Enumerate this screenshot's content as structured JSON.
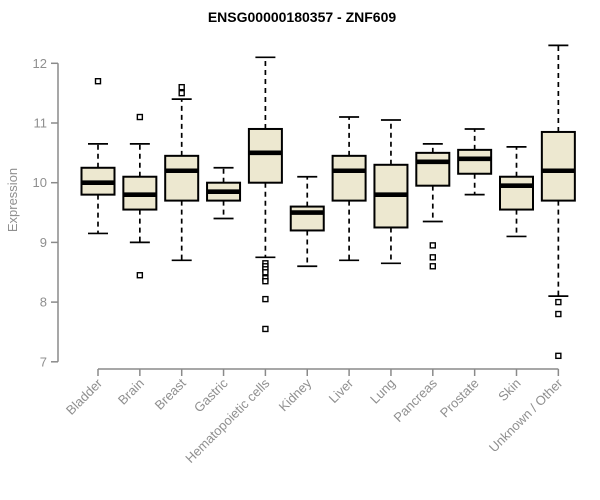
{
  "chart_data": {
    "type": "boxplot",
    "title": "ENSG00000180357 - ZNF609",
    "xlabel": "",
    "ylabel": "Expression",
    "ylim": [
      7,
      12
    ],
    "yticks": [
      7,
      8,
      9,
      10,
      11,
      12
    ],
    "grid": false,
    "legend": "none",
    "categories": [
      "Bladder",
      "Brain",
      "Breast",
      "Gastric",
      "Hematopoietic cells",
      "Kidney",
      "Liver",
      "Lung",
      "Pancreas",
      "Prostate",
      "Skin",
      "Unknown / Other"
    ],
    "series": [
      {
        "category": "Bladder",
        "whisker_low": 9.15,
        "q1": 9.8,
        "median": 10.0,
        "q3": 10.25,
        "whisker_high": 10.65,
        "outliers": [
          11.7
        ]
      },
      {
        "category": "Brain",
        "whisker_low": 9.0,
        "q1": 9.55,
        "median": 9.8,
        "q3": 10.1,
        "whisker_high": 10.65,
        "outliers": [
          11.1,
          8.45
        ]
      },
      {
        "category": "Breast",
        "whisker_low": 8.7,
        "q1": 9.7,
        "median": 10.2,
        "q3": 10.45,
        "whisker_high": 11.4,
        "outliers": [
          11.6,
          11.5
        ]
      },
      {
        "category": "Gastric",
        "whisker_low": 9.4,
        "q1": 9.7,
        "median": 9.85,
        "q3": 10.0,
        "whisker_high": 10.25,
        "outliers": []
      },
      {
        "category": "Hematopoietic cells",
        "whisker_low": 8.75,
        "q1": 10.0,
        "median": 10.5,
        "q3": 10.9,
        "whisker_high": 12.1,
        "outliers": [
          8.65,
          8.6,
          8.55,
          8.5,
          8.4,
          8.35,
          8.05,
          7.55
        ]
      },
      {
        "category": "Kidney",
        "whisker_low": 8.6,
        "q1": 9.2,
        "median": 9.5,
        "q3": 9.6,
        "whisker_high": 10.1,
        "outliers": []
      },
      {
        "category": "Liver",
        "whisker_low": 8.7,
        "q1": 9.7,
        "median": 10.2,
        "q3": 10.45,
        "whisker_high": 11.1,
        "outliers": []
      },
      {
        "category": "Lung",
        "whisker_low": 8.65,
        "q1": 9.25,
        "median": 9.8,
        "q3": 10.3,
        "whisker_high": 11.05,
        "outliers": []
      },
      {
        "category": "Pancreas",
        "whisker_low": 9.35,
        "q1": 9.95,
        "median": 10.35,
        "q3": 10.5,
        "whisker_high": 10.65,
        "outliers": [
          8.95,
          8.75,
          8.6
        ]
      },
      {
        "category": "Prostate",
        "whisker_low": 9.8,
        "q1": 10.15,
        "median": 10.4,
        "q3": 10.55,
        "whisker_high": 10.9,
        "outliers": []
      },
      {
        "category": "Skin",
        "whisker_low": 9.1,
        "q1": 9.55,
        "median": 9.95,
        "q3": 10.1,
        "whisker_high": 10.6,
        "outliers": []
      },
      {
        "category": "Unknown / Other",
        "whisker_low": 8.1,
        "q1": 9.7,
        "median": 10.2,
        "q3": 10.85,
        "whisker_high": 12.3,
        "outliers": [
          8.0,
          7.8,
          7.1
        ]
      }
    ],
    "colors": {
      "box_fill": "#EDE8D0",
      "box_border": "#000000",
      "median": "#000000",
      "whisker": "#000000",
      "outlier": "#000000",
      "axis": "#8A8A8A",
      "tick_label": "#8F8F8F",
      "title": "#000000",
      "background": "#FFFFFF"
    }
  }
}
